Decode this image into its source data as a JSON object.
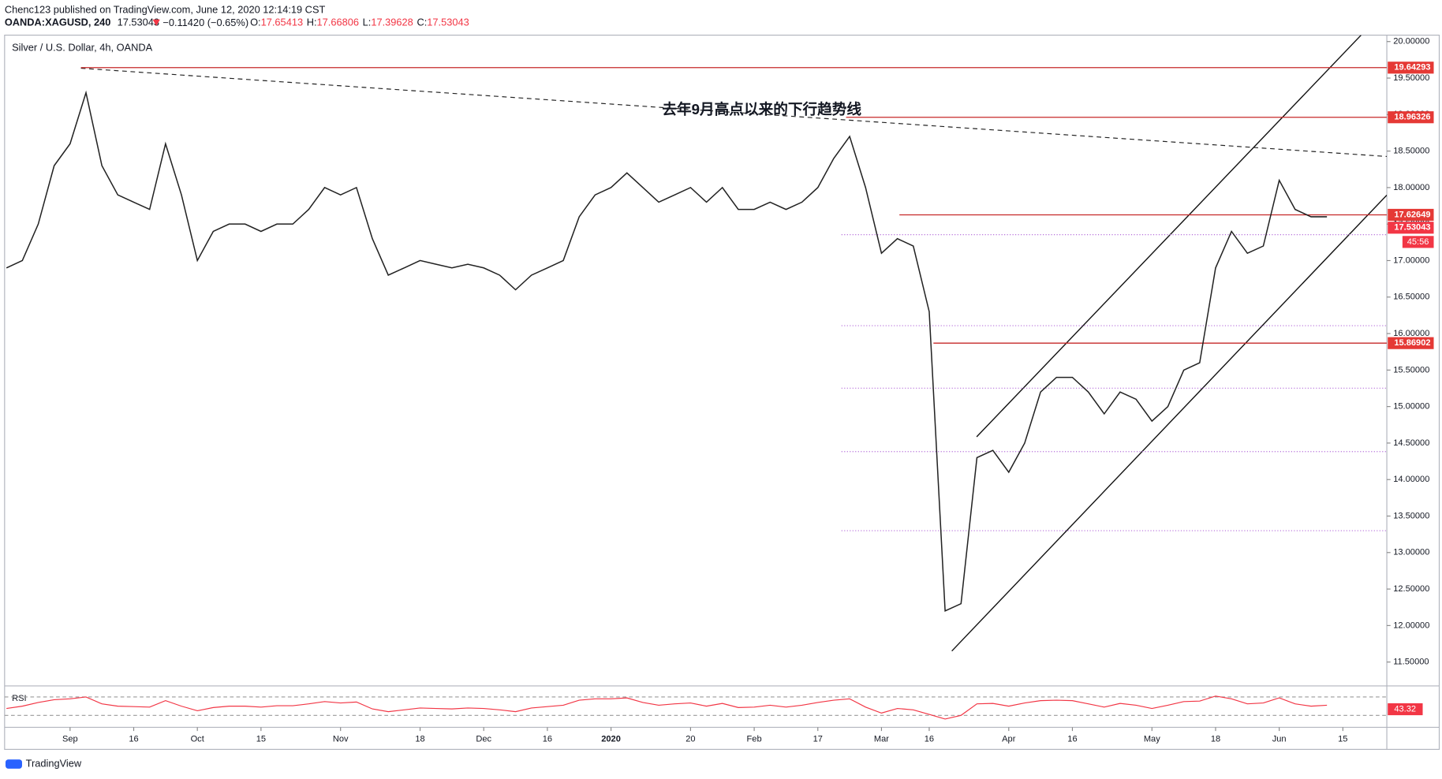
{
  "header": {
    "publisher": "Chenc123 published on TradingView.com, June 12, 2020 12:14:19 CST",
    "symbol": "OANDA:XAGUSD, 240",
    "last": 17.53043,
    "change": "−0.11420 (−0.65%)",
    "ohlc": [
      {
        "key": "O:",
        "value": 17.65413
      },
      {
        "key": "H:",
        "value": 17.66806
      },
      {
        "key": "L:",
        "value": 17.39628
      },
      {
        "key": "C:",
        "value": 17.53043
      }
    ]
  },
  "chart_data": {
    "type": "line",
    "title": "Silver / U.S. Dollar, 4h, OANDA",
    "color": "#222222",
    "annotation": "去年9月高点以来的下行趋势线",
    "categories": [
      null,
      null,
      null,
      null,
      "Sep",
      null,
      null,
      null,
      "16",
      null,
      null,
      null,
      "Oct",
      null,
      null,
      null,
      "15",
      null,
      null,
      null,
      null,
      "Nov",
      null,
      null,
      null,
      null,
      "18",
      null,
      null,
      null,
      "Dec",
      null,
      null,
      null,
      "16",
      null,
      null,
      null,
      "2020",
      null,
      null,
      null,
      null,
      "20",
      null,
      null,
      null,
      "Feb",
      null,
      null,
      null,
      "17",
      null,
      null,
      null,
      "Mar",
      null,
      null,
      "16",
      null,
      null,
      null,
      null,
      "Apr",
      null,
      null,
      null,
      "16",
      null,
      null,
      null,
      null,
      "May",
      null,
      null,
      null,
      "18",
      null,
      null,
      null,
      "Jun",
      null,
      null,
      null,
      "15"
    ],
    "values": [
      16.9,
      17.0,
      17.5,
      18.3,
      18.6,
      19.3,
      18.3,
      17.9,
      17.8,
      17.7,
      18.6,
      17.9,
      17.0,
      17.4,
      17.5,
      17.5,
      17.4,
      17.5,
      17.5,
      17.7,
      18.0,
      17.9,
      18.0,
      17.3,
      16.8,
      16.9,
      17.0,
      16.95,
      16.9,
      16.95,
      16.9,
      16.8,
      16.6,
      16.8,
      16.9,
      17.0,
      17.6,
      17.9,
      18.0,
      18.2,
      18.0,
      17.8,
      17.9,
      18.0,
      17.8,
      18.0,
      17.7,
      17.7,
      17.8,
      17.7,
      17.8,
      18.0,
      18.4,
      18.7,
      18.0,
      17.1,
      17.3,
      17.2,
      16.3,
      12.2,
      12.3,
      14.3,
      14.4,
      14.1,
      14.5,
      15.2,
      15.4,
      15.4,
      15.2,
      14.9,
      15.2,
      15.1,
      14.8,
      15.0,
      15.5,
      15.6,
      16.9,
      17.4,
      17.1,
      17.2,
      18.1,
      17.7,
      17.6,
      17.6,
      null
    ],
    "ylim": [
      11.5,
      20
    ],
    "yticks": [
      {
        "value": 20,
        "label": "20.00000"
      },
      {
        "value": 19.5,
        "label": "19.50000"
      },
      {
        "value": 19,
        "label": "19.00000"
      },
      {
        "value": 18.5,
        "label": "18.50000"
      },
      {
        "value": 18,
        "label": "18.00000"
      },
      {
        "value": 17.5,
        "label": "17.50000"
      },
      {
        "value": 17,
        "label": "17.00000"
      },
      {
        "value": 16.5,
        "label": "16.50000"
      },
      {
        "value": 16,
        "label": "16.00000"
      },
      {
        "value": 15.5,
        "label": "15.50000"
      },
      {
        "value": 15,
        "label": "15.00000"
      },
      {
        "value": 14.5,
        "label": "14.50000"
      },
      {
        "value": 14,
        "label": "14.00000"
      },
      {
        "value": 13.5,
        "label": "13.50000"
      },
      {
        "value": 13,
        "label": "13.00000"
      },
      {
        "value": 12.5,
        "label": "12.50000"
      },
      {
        "value": 12,
        "label": "12.00000"
      },
      {
        "value": 11.5,
        "label": "11.50000"
      }
    ],
    "levels": [
      19.64293,
      18.96326,
      17.62649,
      15.86902
    ],
    "fib_levels": [
      17.355,
      16.108,
      15.252,
      14.383,
      13.3
    ],
    "countdown": "45:56",
    "rsi": {
      "label": "RSI",
      "color": "#f23645",
      "ylim": [
        0,
        100
      ],
      "levels": [
        30,
        70
      ],
      "last": 43.32,
      "values": [
        45,
        50,
        58,
        64,
        66,
        70,
        55,
        50,
        49,
        48,
        62,
        50,
        40,
        47,
        50,
        50,
        48,
        51,
        51,
        55,
        60,
        57,
        59,
        44,
        38,
        42,
        46,
        45,
        44,
        46,
        45,
        42,
        38,
        46,
        49,
        52,
        63,
        66,
        66,
        68,
        58,
        52,
        55,
        57,
        50,
        56,
        47,
        48,
        52,
        48,
        52,
        58,
        63,
        66,
        48,
        35,
        45,
        42,
        32,
        22,
        30,
        55,
        56,
        50,
        57,
        62,
        63,
        62,
        55,
        48,
        56,
        52,
        45,
        52,
        60,
        61,
        72,
        66,
        55,
        57,
        68,
        55,
        50,
        52,
        null
      ]
    }
  }
}
